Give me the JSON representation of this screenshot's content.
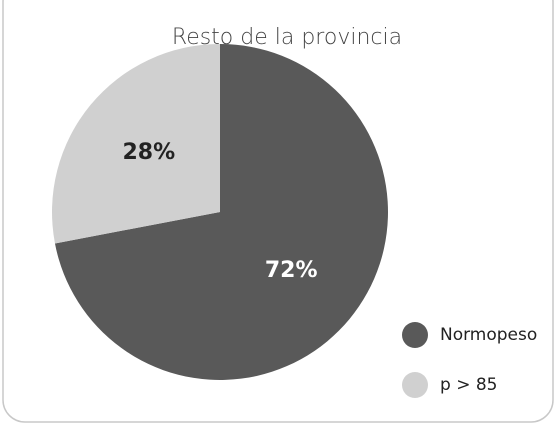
{
  "chart_data": {
    "type": "pie",
    "title": "Resto de la provincia",
    "categories": [
      "Normopeso",
      "p > 85"
    ],
    "values": [
      72,
      28
    ],
    "value_labels": [
      "72%",
      "28%"
    ],
    "colors": [
      "#595959",
      "#d0d0d0"
    ],
    "label_colors": [
      "#ffffff",
      "#222222"
    ]
  }
}
